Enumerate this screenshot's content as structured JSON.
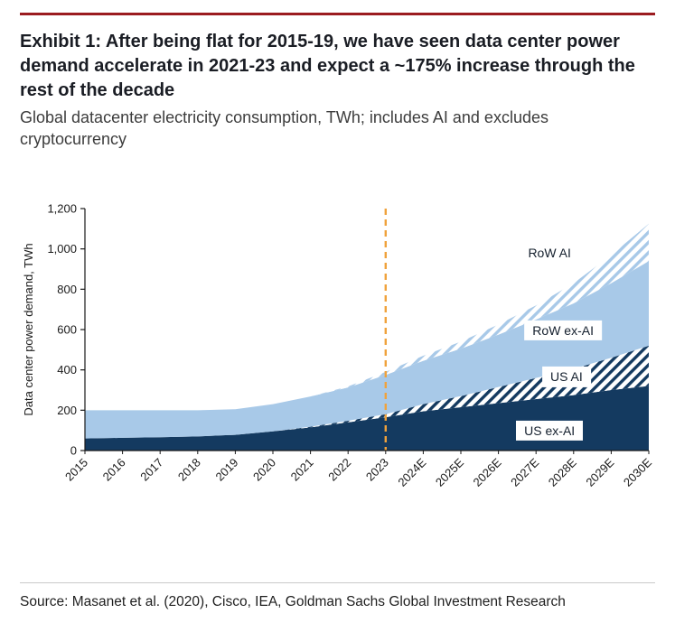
{
  "page": {
    "background": "#ffffff"
  },
  "colors": {
    "top_rule": "#9b1c20",
    "title_text": "#1a1d24",
    "navy": "#143a60",
    "light_blue": "#a8c9e8",
    "divider_line": "#f0a23c",
    "axis": "#1a1a1a"
  },
  "header": {
    "title": "Exhibit 1: After being flat for 2015-19, we have seen data center power demand accelerate in 2021-23 and expect a ~175% increase through the rest of the decade",
    "subtitle": "Global datacenter electricity consumption, TWh; includes AI and excludes cryptocurrency"
  },
  "chart_data": {
    "type": "area",
    "stacked": true,
    "title": "",
    "xlabel": "",
    "ylabel": "Data center power demand, TWh",
    "ylim": [
      0,
      1200
    ],
    "yticks": [
      0,
      200,
      400,
      600,
      800,
      1000,
      1200
    ],
    "ytick_labels": [
      "0",
      "200",
      "400",
      "600",
      "800",
      "1,000",
      "1,200"
    ],
    "grid": false,
    "legend_position": "none",
    "categories": [
      "2015",
      "2016",
      "2017",
      "2018",
      "2019",
      "2020",
      "2021",
      "2022",
      "2023",
      "2024E",
      "2025E",
      "2026E",
      "2027E",
      "2028E",
      "2029E",
      "2030E"
    ],
    "series": [
      {
        "name": "US ex-AI",
        "fill": "solid",
        "color": "#143a60",
        "values": [
          60,
          63,
          66,
          70,
          78,
          95,
          115,
          140,
          165,
          195,
          215,
          235,
          255,
          275,
          300,
          320
        ]
      },
      {
        "name": "US AI",
        "fill": "hatch",
        "color": "#143a60",
        "values": [
          0,
          0,
          0,
          0,
          0,
          0,
          3,
          8,
          15,
          35,
          55,
          80,
          105,
          130,
          160,
          200
        ]
      },
      {
        "name": "RoW ex-AI",
        "fill": "solid",
        "color": "#a8c9e8",
        "values": [
          140,
          137,
          134,
          130,
          127,
          135,
          150,
          165,
          195,
          215,
          235,
          260,
          290,
          325,
          370,
          420
        ]
      },
      {
        "name": "RoW AI",
        "fill": "hatch",
        "color": "#a8c9e8",
        "values": [
          0,
          0,
          0,
          0,
          0,
          0,
          0,
          5,
          15,
          25,
          35,
          50,
          70,
          100,
          140,
          185
        ]
      }
    ],
    "divider": {
      "category": "2023",
      "color": "#f0a23c",
      "style": "dashed"
    },
    "annotations": [
      {
        "label": "RoW AI",
        "fx": 0.824,
        "fy": 0.184
      },
      {
        "label": "RoW ex-AI",
        "fx": 0.848,
        "fy": 0.506
      },
      {
        "label": "US AI",
        "fx": 0.854,
        "fy": 0.697
      },
      {
        "label": "US ex-AI",
        "fx": 0.824,
        "fy": 0.919
      }
    ]
  },
  "footer": {
    "source": "Source: Masanet et al. (2020), Cisco, IEA, Goldman Sachs Global Investment Research"
  }
}
